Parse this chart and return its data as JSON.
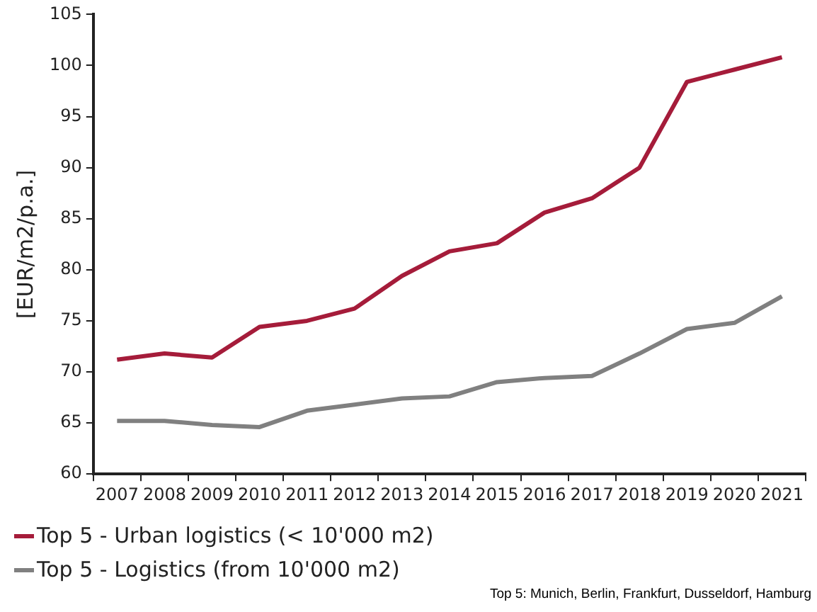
{
  "chart_data": {
    "type": "line",
    "ylabel": "[EUR/m2/p.a.]",
    "categories": [
      "2007",
      "2008",
      "2009",
      "2010",
      "2011",
      "2012",
      "2013",
      "2014",
      "2015",
      "2016",
      "2017",
      "2018",
      "2019",
      "2020",
      "2021"
    ],
    "series": [
      {
        "name": "Top 5 - Urban logistics (< 10'000 m2)",
        "color": "#a51c3a",
        "values": [
          71.2,
          71.8,
          71.4,
          74.4,
          75,
          76.2,
          79.4,
          81.8,
          82.6,
          85.6,
          87,
          90,
          98.4,
          99.6,
          100.8
        ]
      },
      {
        "name": "Top 5 - Logistics (from 10'000 m2)",
        "color": "#808080",
        "values": [
          65.2,
          65.2,
          64.8,
          64.6,
          66.2,
          66.8,
          67.4,
          67.6,
          69,
          69.4,
          69.6,
          71.8,
          74.2,
          74.8,
          77.4
        ]
      }
    ],
    "ylim": [
      60,
      105
    ],
    "yticks": [
      60,
      65,
      70,
      75,
      80,
      85,
      90,
      95,
      100,
      105
    ],
    "grid": false,
    "legend": "bottom left",
    "marker": "none",
    "line_style": "solid",
    "annotations": [
      "Top 5: Munich, Berlin, Frankfurt, Dusseldorf, Hamburg"
    ]
  }
}
